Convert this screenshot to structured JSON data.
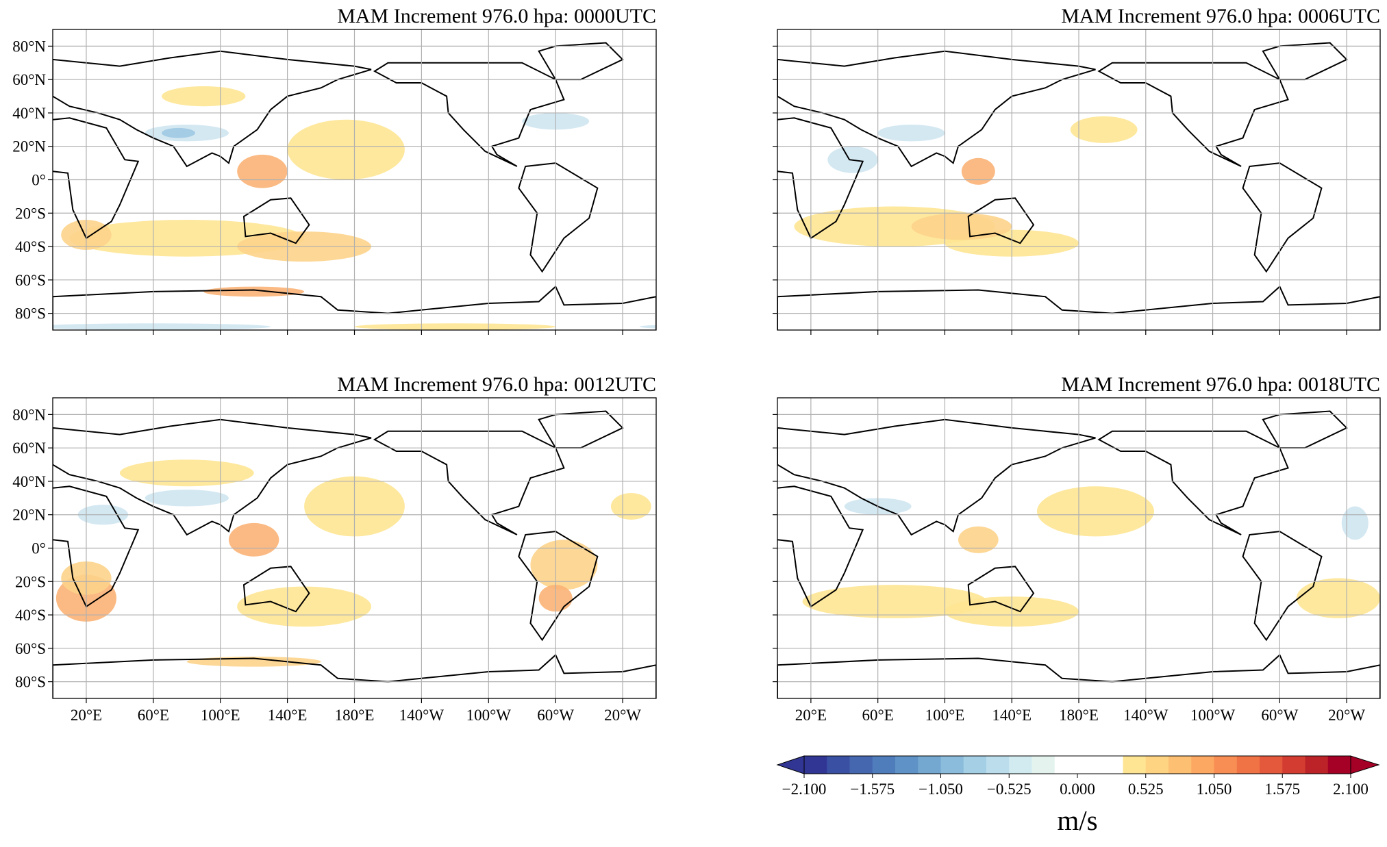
{
  "panels": [
    {
      "title": "MAM Increment 976.0 hpa:  0000UTC"
    },
    {
      "title": "MAM Increment 976.0 hpa:  0006UTC"
    },
    {
      "title": "MAM Increment 976.0 hpa:  0012UTC"
    },
    {
      "title": "MAM Increment 976.0 hpa:  0018UTC"
    }
  ],
  "lat_range": [
    -90,
    90
  ],
  "lon_range": [
    0,
    360
  ],
  "lat_ticks": [
    {
      "value": 80,
      "label": "80°N"
    },
    {
      "value": 60,
      "label": "60°N"
    },
    {
      "value": 40,
      "label": "40°N"
    },
    {
      "value": 20,
      "label": "20°N"
    },
    {
      "value": 0,
      "label": "0°"
    },
    {
      "value": -20,
      "label": "20°S"
    },
    {
      "value": -40,
      "label": "40°S"
    },
    {
      "value": -60,
      "label": "60°S"
    },
    {
      "value": -80,
      "label": "80°S"
    }
  ],
  "lon_ticks": [
    {
      "value": 20,
      "label": "20°E"
    },
    {
      "value": 60,
      "label": "60°E"
    },
    {
      "value": 100,
      "label": "100°E"
    },
    {
      "value": 140,
      "label": "140°E"
    },
    {
      "value": 180,
      "label": "180°E"
    },
    {
      "value": -140,
      "label": "140°W"
    },
    {
      "value": -100,
      "label": "100°W"
    },
    {
      "value": -60,
      "label": "60°W"
    },
    {
      "value": -20,
      "label": "20°W"
    }
  ],
  "colorbar": {
    "label": "m/s",
    "range": [
      -2.1,
      2.1
    ],
    "ticks": [
      {
        "value": -2.1,
        "label": "−2.100"
      },
      {
        "value": -1.575,
        "label": "−1.575"
      },
      {
        "value": -1.05,
        "label": "−1.050"
      },
      {
        "value": -0.525,
        "label": "−0.525"
      },
      {
        "value": 0,
        "label": "0.000"
      },
      {
        "value": 0.525,
        "label": "0.525"
      },
      {
        "value": 1.05,
        "label": "1.050"
      },
      {
        "value": 1.575,
        "label": "1.575"
      },
      {
        "value": 2.1,
        "label": "2.100"
      }
    ],
    "colors": [
      "#313695",
      "#3a50a3",
      "#4567b0",
      "#4f7dbb",
      "#5f92c6",
      "#74a8d1",
      "#8bbcdc",
      "#a4cfe5",
      "#bcdeec",
      "#d2ebf1",
      "#e4f3ee",
      "#ffffff",
      "#ffffff",
      "#ffffff",
      "#fee594",
      "#fed382",
      "#fdbf71",
      "#fca762",
      "#f88e53",
      "#f07346",
      "#e4583b",
      "#d33d31",
      "#bc2329",
      "#a50026"
    ]
  }
}
